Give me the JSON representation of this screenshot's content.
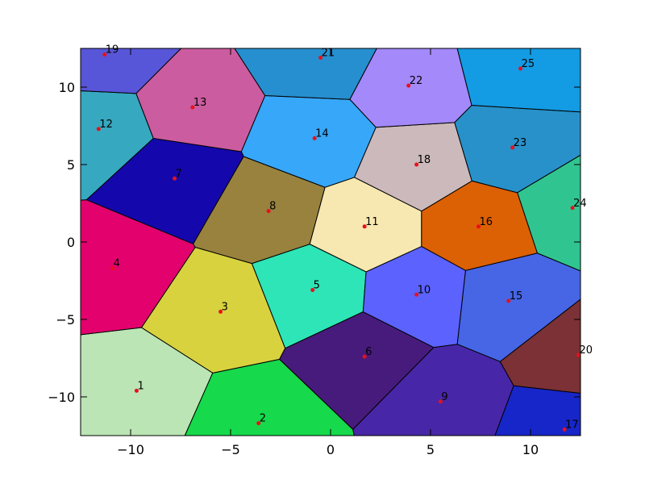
{
  "chart_data": {
    "type": "scatter",
    "subtype": "voronoi",
    "title": "",
    "xlabel": "",
    "ylabel": "",
    "xlim": [
      -12.5,
      12.5
    ],
    "ylim": [
      -12.5,
      12.5
    ],
    "xticks": [
      -10,
      -5,
      0,
      5,
      10
    ],
    "yticks": [
      -10,
      -5,
      0,
      5,
      10
    ],
    "xtick_labels": [
      "−10",
      "−5",
      "0",
      "5",
      "10"
    ],
    "ytick_labels": [
      "−10",
      "−5",
      "0",
      "5",
      "10"
    ],
    "grid": false,
    "point_color": "#e8101a",
    "edge_color": "#000000",
    "points": [
      {
        "label": "1",
        "x": -9.7,
        "y": -9.6,
        "color": "#bbe5b4"
      },
      {
        "label": "2",
        "x": -3.6,
        "y": -11.7,
        "color": "#16d94b"
      },
      {
        "label": "3",
        "x": -5.5,
        "y": -4.5,
        "color": "#d8d23f"
      },
      {
        "label": "4",
        "x": -10.9,
        "y": -1.7,
        "color": "#e3016e"
      },
      {
        "label": "5",
        "x": -0.9,
        "y": -3.1,
        "color": "#2de5b6"
      },
      {
        "label": "6",
        "x": 1.7,
        "y": -7.4,
        "color": "#471b7b"
      },
      {
        "label": "7",
        "x": -7.8,
        "y": 4.1,
        "color": "#1408ac"
      },
      {
        "label": "8",
        "x": -3.1,
        "y": 2.0,
        "color": "#98823e"
      },
      {
        "label": "9",
        "x": 5.5,
        "y": -10.3,
        "color": "#4727a7"
      },
      {
        "label": "10",
        "x": 4.3,
        "y": -3.4,
        "color": "#5b62fd"
      },
      {
        "label": "11",
        "x": 1.7,
        "y": 1.0,
        "color": "#f7e7b1"
      },
      {
        "label": "12",
        "x": -11.6,
        "y": 7.3,
        "color": "#36a8c0"
      },
      {
        "label": "13",
        "x": -6.9,
        "y": 8.7,
        "color": "#cb5c9f"
      },
      {
        "label": "14",
        "x": -0.8,
        "y": 6.7,
        "color": "#37a7f9"
      },
      {
        "label": "15",
        "x": 8.9,
        "y": -3.8,
        "color": "#4666e6"
      },
      {
        "label": "16",
        "x": 7.4,
        "y": 1.0,
        "color": "#dc6004"
      },
      {
        "label": "17",
        "x": 11.7,
        "y": -12.1,
        "color": "#1726c8"
      },
      {
        "label": "18",
        "x": 4.3,
        "y": 5.0,
        "color": "#cbb9bb"
      },
      {
        "label": "19",
        "x": -11.3,
        "y": 12.1,
        "color": "#5856d8"
      },
      {
        "label": "20",
        "x": 12.4,
        "y": -7.3,
        "color": "#7b3135"
      },
      {
        "label": "21",
        "x": -0.5,
        "y": 11.9,
        "color": "#268fd0"
      },
      {
        "label": "22",
        "x": 3.9,
        "y": 10.1,
        "color": "#a389fa"
      },
      {
        "label": "23",
        "x": 9.1,
        "y": 6.1,
        "color": "#2891c9"
      },
      {
        "label": "24",
        "x": 12.1,
        "y": 2.2,
        "color": "#30c590"
      },
      {
        "label": "25",
        "x": 9.5,
        "y": 11.2,
        "color": "#139be4"
      }
    ]
  }
}
